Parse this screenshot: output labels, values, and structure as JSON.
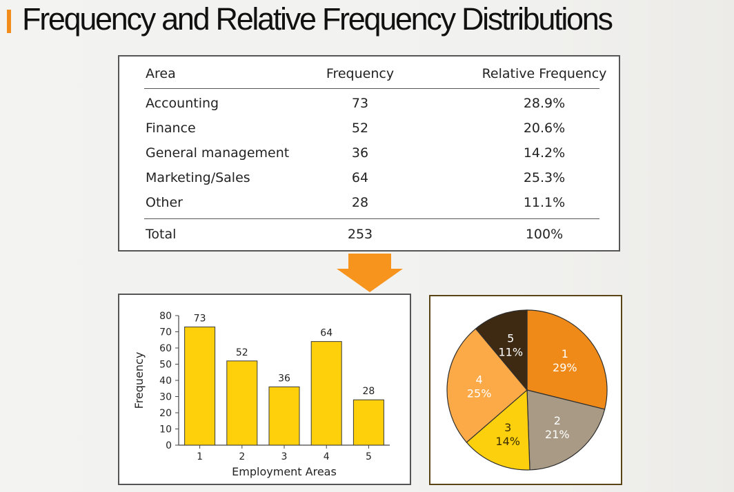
{
  "title": "Frequency and Relative Frequency Distributions",
  "colors": {
    "accent": "#f28c1a",
    "bar": "#fdd00b",
    "arrow": "#f7941d"
  },
  "table": {
    "headers": [
      "Area",
      "Frequency",
      "Relative Frequency"
    ],
    "rows": [
      [
        "Accounting",
        "73",
        "28.9%"
      ],
      [
        "Finance",
        "52",
        "20.6%"
      ],
      [
        "General management",
        "36",
        "14.2%"
      ],
      [
        "Marketing/Sales",
        "64",
        "25.3%"
      ],
      [
        "Other",
        "28",
        "11.1%"
      ]
    ],
    "total": [
      "Total",
      "253",
      "100%"
    ]
  },
  "chart_data": [
    {
      "type": "bar",
      "categories": [
        "1",
        "2",
        "3",
        "4",
        "5"
      ],
      "values": [
        73,
        52,
        36,
        64,
        28
      ],
      "data_labels": [
        "73",
        "52",
        "36",
        "64",
        "28"
      ],
      "xlabel": "Employment Areas",
      "ylabel": "Frequency",
      "ylim": [
        0,
        80
      ],
      "yticks": [
        0,
        10,
        20,
        30,
        40,
        50,
        60,
        70,
        80
      ],
      "grid": false
    },
    {
      "type": "pie",
      "slices": [
        {
          "label": "1",
          "percent_label": "29%",
          "value": 28.9,
          "color": "#ef8a18",
          "text_color": "#ffffff"
        },
        {
          "label": "2",
          "percent_label": "21%",
          "value": 20.6,
          "color": "#a89a85",
          "text_color": "#ffffff"
        },
        {
          "label": "3",
          "percent_label": "14%",
          "value": 14.2,
          "color": "#fcd00c",
          "text_color": "#3a2a00"
        },
        {
          "label": "4",
          "percent_label": "25%",
          "value": 25.3,
          "color": "#fcaa48",
          "text_color": "#ffffff"
        },
        {
          "label": "5",
          "percent_label": "11%",
          "value": 11.1,
          "color": "#3e2a13",
          "text_color": "#ffffff"
        }
      ]
    }
  ]
}
